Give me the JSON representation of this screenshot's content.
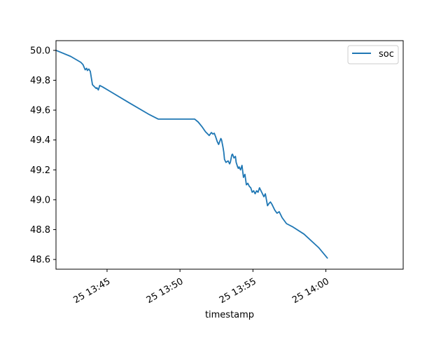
{
  "chart_data": {
    "type": "line",
    "xlabel": "timestamp",
    "ylabel": "",
    "title": "",
    "x_unit": "minutes since 13:41:30 on day 25",
    "xlim": [
      0,
      23.8
    ],
    "ylim": [
      48.535,
      50.065
    ],
    "y_ticks": [
      48.6,
      48.8,
      49.0,
      49.2,
      49.4,
      49.6,
      49.8,
      50.0
    ],
    "y_tick_labels": [
      "48.6",
      "48.8",
      "49.0",
      "49.2",
      "49.4",
      "49.6",
      "49.8",
      "50.0"
    ],
    "x_ticks": [
      3.5,
      8.5,
      13.5,
      18.5
    ],
    "x_tick_labels": [
      "25 13:45",
      "25 13:50",
      "25 13:55",
      "25 14:00"
    ],
    "grid": false,
    "legend_position": "upper right",
    "line_color": "#1f77b4",
    "series": [
      {
        "name": "soc",
        "x": [
          0.0,
          1.0,
          1.7,
          1.85,
          2.0,
          2.1,
          2.15,
          2.25,
          2.35,
          2.5,
          2.75,
          2.8,
          2.9,
          3.0,
          3.2,
          3.8,
          5.0,
          6.4,
          7.0,
          8.0,
          9.0,
          9.5,
          9.75,
          10.0,
          10.25,
          10.5,
          10.65,
          10.75,
          10.85,
          10.95,
          11.05,
          11.15,
          11.3,
          11.35,
          11.45,
          11.5,
          11.55,
          11.65,
          11.8,
          11.9,
          11.95,
          12.05,
          12.1,
          12.2,
          12.3,
          12.35,
          12.45,
          12.5,
          12.55,
          12.65,
          12.75,
          12.85,
          12.95,
          13.05,
          13.15,
          13.25,
          13.35,
          13.45,
          13.55,
          13.65,
          13.75,
          13.85,
          13.95,
          14.05,
          14.15,
          14.25,
          14.35,
          14.5,
          14.6,
          14.7,
          14.8,
          15.0,
          15.15,
          15.3,
          15.5,
          15.8,
          16.2,
          17.0,
          18.0,
          18.6
        ],
        "y": [
          50.0,
          49.96,
          49.92,
          49.905,
          49.87,
          49.88,
          49.865,
          49.875,
          49.86,
          49.77,
          49.745,
          49.75,
          49.735,
          49.765,
          49.755,
          49.72,
          49.65,
          49.57,
          49.54,
          49.54,
          49.54,
          49.54,
          49.52,
          49.49,
          49.455,
          49.43,
          49.45,
          49.44,
          49.445,
          49.42,
          49.39,
          49.37,
          49.41,
          49.4,
          49.35,
          49.32,
          49.27,
          49.25,
          49.26,
          49.24,
          49.25,
          49.3,
          49.305,
          49.28,
          49.29,
          49.25,
          49.22,
          49.21,
          49.22,
          49.2,
          49.23,
          49.15,
          49.17,
          49.1,
          49.11,
          49.09,
          49.08,
          49.05,
          49.06,
          49.04,
          49.06,
          49.05,
          49.08,
          49.06,
          49.04,
          49.02,
          49.04,
          48.96,
          48.975,
          48.985,
          48.97,
          48.93,
          48.91,
          48.92,
          48.88,
          48.84,
          48.82,
          48.77,
          48.68,
          48.61
        ]
      }
    ]
  }
}
